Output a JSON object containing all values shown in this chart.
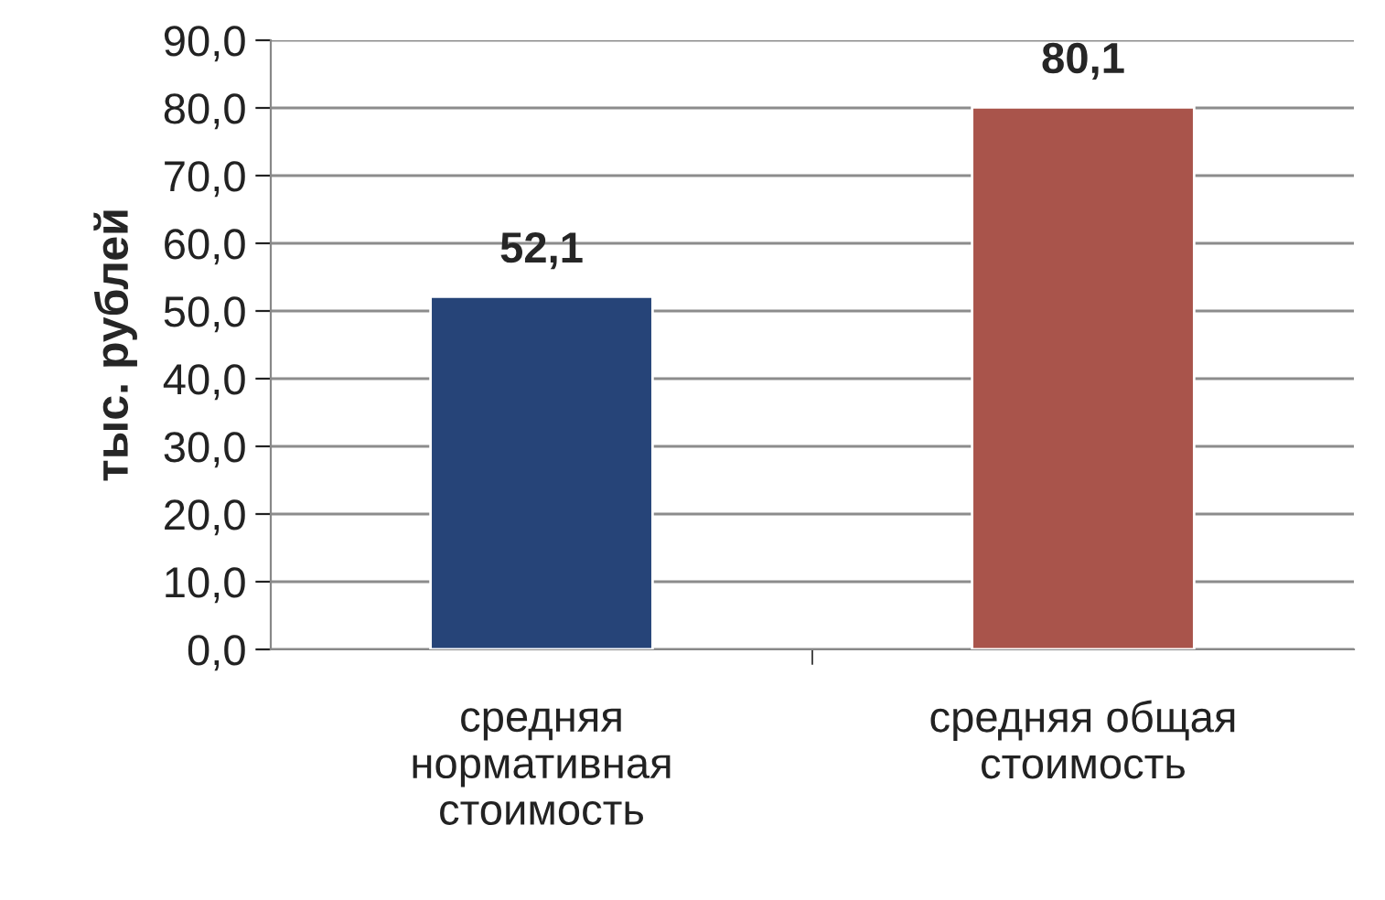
{
  "chart_data": {
    "type": "bar",
    "ylabel": "тыс. рублей",
    "categories": [
      "средняя\nнормативная\nстоимость",
      "средняя общая\nстоимость"
    ],
    "values": [
      52.1,
      80.1
    ],
    "colors": [
      "#264478",
      "#a9544b"
    ],
    "value_labels": [
      "52,1",
      "80,1"
    ],
    "ylim": [
      0,
      90
    ],
    "yticks": [
      {
        "value": 0,
        "label": "0,0"
      },
      {
        "value": 10,
        "label": "10,0"
      },
      {
        "value": 20,
        "label": "20,0"
      },
      {
        "value": 30,
        "label": "30,0"
      },
      {
        "value": 40,
        "label": "40,0"
      },
      {
        "value": 50,
        "label": "50,0"
      },
      {
        "value": 60,
        "label": "60,0"
      },
      {
        "value": 70,
        "label": "70,0"
      },
      {
        "value": 80,
        "label": "80,0"
      },
      {
        "value": 90,
        "label": "90,0"
      }
    ],
    "grid": "y",
    "legend": false
  }
}
